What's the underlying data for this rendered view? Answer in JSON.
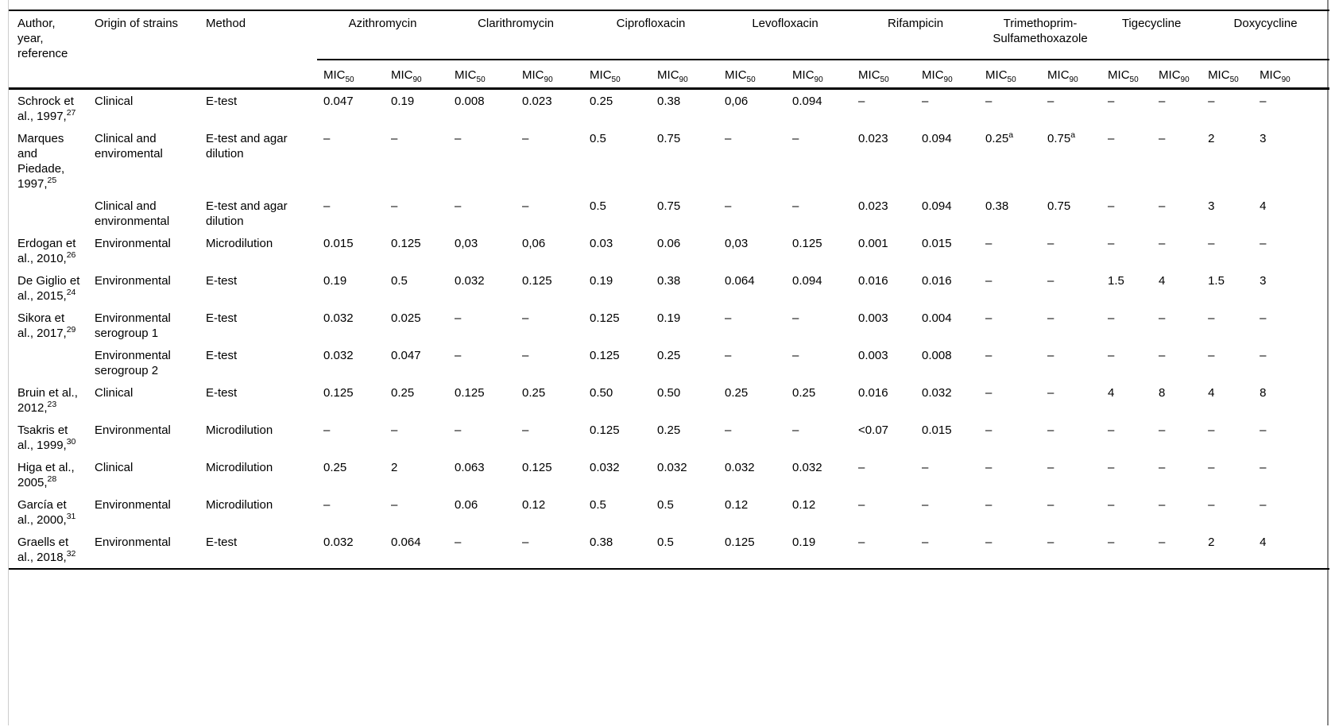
{
  "table": {
    "columns": {
      "author": "Author, year, reference",
      "origin": "Origin of strains",
      "method": "Method"
    },
    "drugs": [
      "Azithromycin",
      "Clarithromycin",
      "Ciprofloxacin",
      "Levofloxacin",
      "Rifampicin",
      "Trimethoprim-Sulfamethoxazole",
      "Tigecycline",
      "Doxycycline"
    ],
    "mic": {
      "prefix": "MIC",
      "sub50": "50",
      "sub90": "90"
    },
    "rows": [
      {
        "author": "Schrock et al., 1997,",
        "ref": "27",
        "origin": "Clinical",
        "method": "E-test",
        "values": [
          "0.047",
          "0.19",
          "0.008",
          "0.023",
          "0.25",
          "0.38",
          "0,06",
          "0.094",
          "–",
          "–",
          "–",
          "–",
          "–",
          "–",
          "–",
          "–"
        ]
      },
      {
        "author": "Marques and Piedade, 1997,",
        "ref": "25",
        "origin": "Clinical and enviromental",
        "method": "E-test and agar dilution",
        "values": [
          "–",
          "–",
          "–",
          "–",
          "0.5",
          "0.75",
          "–",
          "–",
          "0.023",
          "0.094",
          {
            "v": "0.25",
            "sup": "a"
          },
          {
            "v": "0.75",
            "sup": "a"
          },
          "–",
          "–",
          "2",
          "3"
        ]
      },
      {
        "author": "",
        "ref": "",
        "origin": "Clinical and environmental",
        "method": "E-test and agar dilution",
        "values": [
          "–",
          "–",
          "–",
          "–",
          "0.5",
          "0.75",
          "–",
          "–",
          "0.023",
          "0.094",
          "0.38",
          "0.75",
          "–",
          "–",
          "3",
          "4"
        ]
      },
      {
        "author": "Erdogan et al., 2010,",
        "ref": "26",
        "origin": "Environmental",
        "method": "Microdilution",
        "values": [
          "0.015",
          "0.125",
          "0,03",
          "0,06",
          "0.03",
          "0.06",
          "0,03",
          "0.125",
          "0.001",
          "0.015",
          "–",
          "–",
          "–",
          "–",
          "–",
          "–"
        ]
      },
      {
        "author": "De Giglio et al., 2015,",
        "ref": "24",
        "origin": "Environmental",
        "method": "E-test",
        "values": [
          "0.19",
          "0.5",
          "0.032",
          "0.125",
          "0.19",
          "0.38",
          "0.064",
          "0.094",
          "0.016",
          "0.016",
          "–",
          "–",
          "1.5",
          "4",
          "1.5",
          "3"
        ]
      },
      {
        "author": "Sikora et al., 2017,",
        "ref": "29",
        "origin": "Environmental serogroup 1",
        "method": "E-test",
        "values": [
          "0.032",
          "0.025",
          "–",
          "–",
          "0.125",
          "0.19",
          "–",
          "–",
          "0.003",
          "0.004",
          "–",
          "–",
          "–",
          "–",
          "–",
          "–"
        ]
      },
      {
        "author": "",
        "ref": "",
        "origin": "Environmental serogroup 2",
        "method": "E-test",
        "values": [
          "0.032",
          "0.047",
          "–",
          "–",
          "0.125",
          "0.25",
          "–",
          "–",
          "0.003",
          "0.008",
          "–",
          "–",
          "–",
          "–",
          "–",
          "–"
        ]
      },
      {
        "author": "Bruin et al., 2012,",
        "ref": "23",
        "origin": "Clinical",
        "method": "E-test",
        "values": [
          "0.125",
          "0.25",
          "0.125",
          "0.25",
          "0.50",
          "0.50",
          "0.25",
          "0.25",
          "0.016",
          "0.032",
          "–",
          "–",
          "4",
          "8",
          "4",
          "8"
        ]
      },
      {
        "author": "Tsakris et al., 1999,",
        "ref": "30",
        "origin": "Environmental",
        "method": "Microdilution",
        "values": [
          "–",
          "–",
          "–",
          "–",
          "0.125",
          "0.25",
          "–",
          "–",
          "<0.07",
          "0.015",
          "–",
          "–",
          "–",
          "–",
          "–",
          "–"
        ]
      },
      {
        "author": "Higa et al., 2005,",
        "ref": "28",
        "origin": "Clinical",
        "method": "Microdilution",
        "values": [
          "0.25",
          "2",
          "0.063",
          "0.125",
          "0.032",
          "0.032",
          "0.032",
          "0.032",
          "–",
          "–",
          "–",
          "–",
          "–",
          "–",
          "–",
          "–"
        ]
      },
      {
        "author": "García et al., 2000,",
        "ref": "31",
        "origin": "Environmental",
        "method": "Microdilution",
        "values": [
          "–",
          "–",
          "0.06",
          "0.12",
          "0.5",
          "0.5",
          "0.12",
          "0.12",
          "–",
          "–",
          "–",
          "–",
          "–",
          "–",
          "–",
          "–"
        ]
      },
      {
        "author": "Graells et al., 2018,",
        "ref": "32",
        "origin": "Environmental",
        "method": "E-test",
        "values": [
          "0.032",
          "0.064",
          "–",
          "–",
          "0.38",
          "0.5",
          "0.125",
          "0.19",
          "–",
          "–",
          "–",
          "–",
          "–",
          "–",
          "2",
          "4"
        ]
      }
    ]
  }
}
